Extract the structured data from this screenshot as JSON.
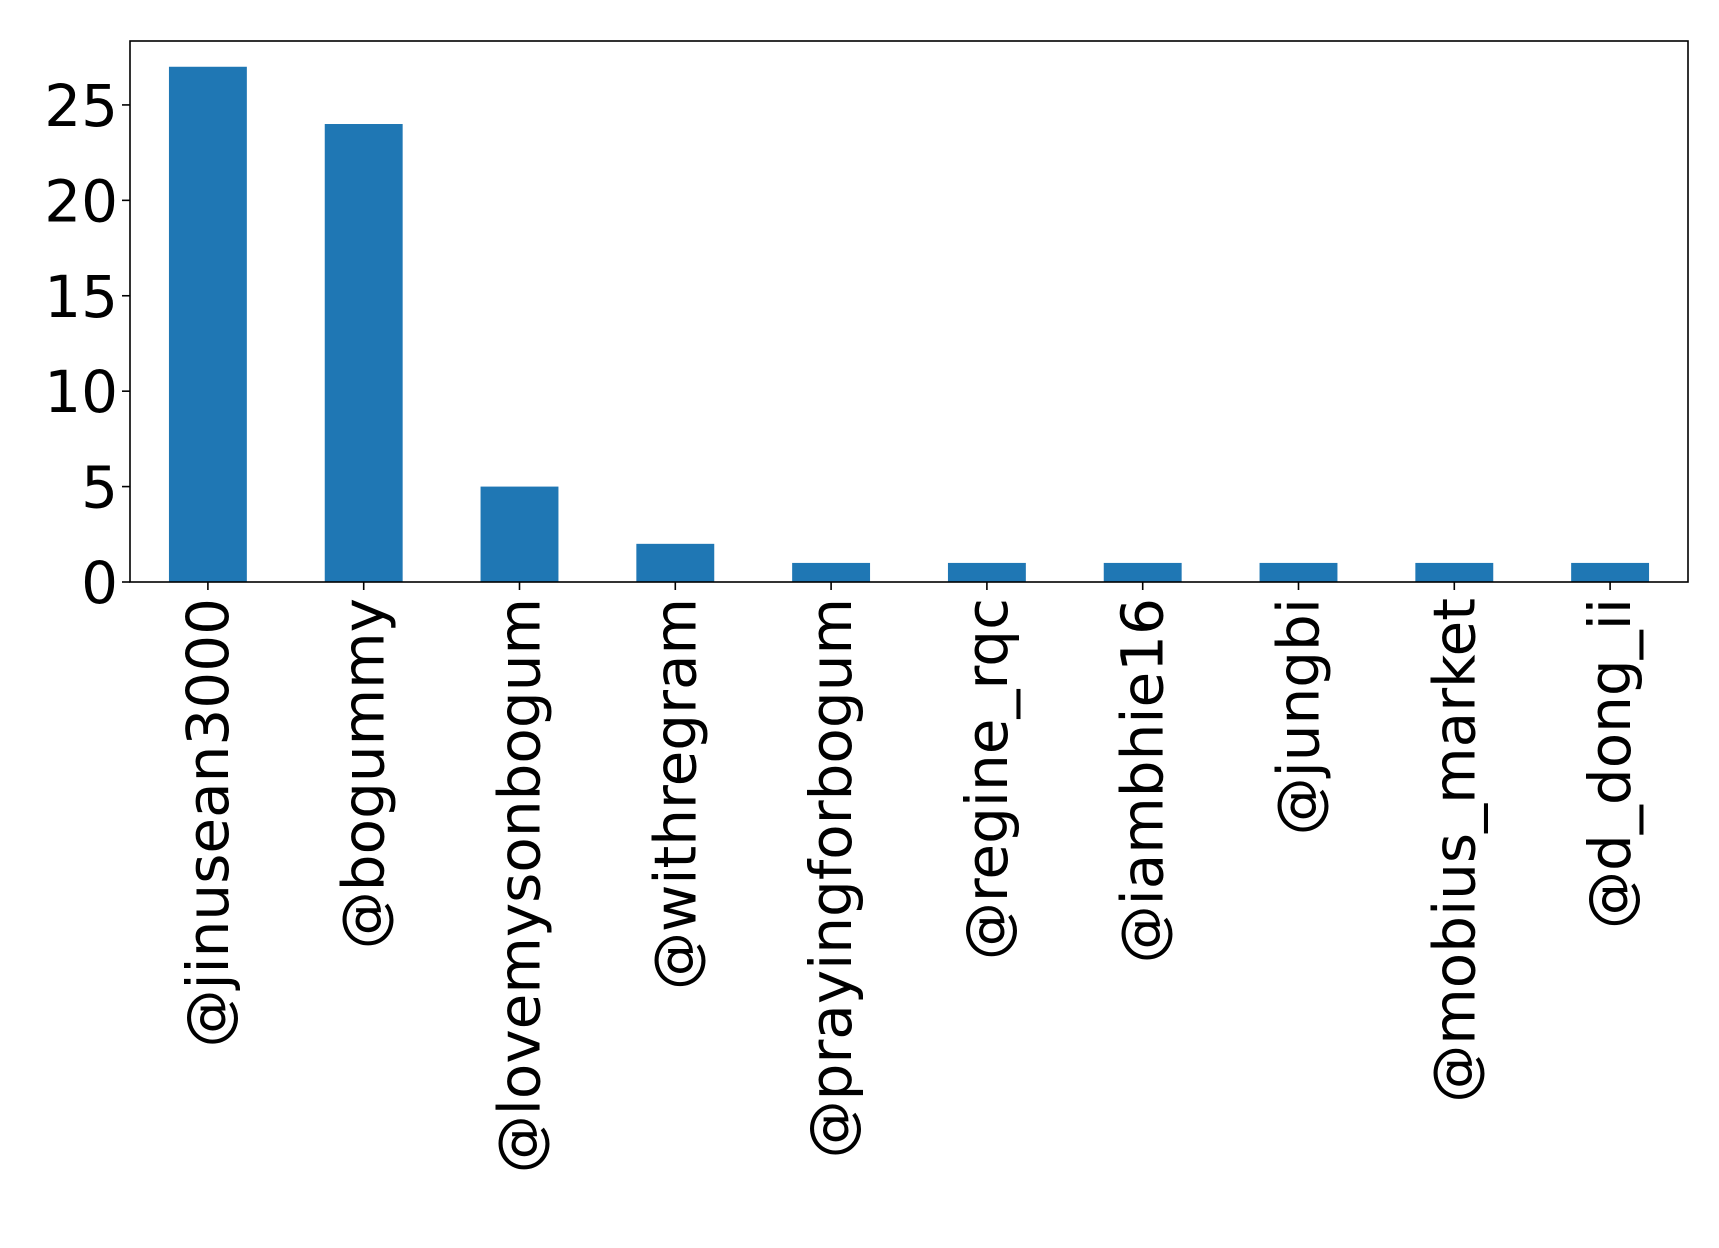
{
  "chart_data": {
    "type": "bar",
    "title": "",
    "xlabel": "",
    "ylabel": "",
    "categories": [
      "@jinusean3000",
      "@bogummy",
      "@lovemysonbogum",
      "@withregram",
      "@prayingforbogum",
      "@regine_rqc",
      "@iambhie16",
      "@jungbi",
      "@mobius_market",
      "@d_dong_ii"
    ],
    "values": [
      27,
      24,
      5,
      2,
      1,
      1,
      1,
      1,
      1,
      1
    ],
    "ylim": [
      0,
      28.35
    ],
    "yticks": [
      0,
      5,
      10,
      15,
      20,
      25
    ],
    "ytick_labels": [
      "0",
      "5",
      "10",
      "15",
      "20",
      "25"
    ],
    "bar_color": "#1f77b4",
    "grid": false,
    "legend": "none"
  }
}
